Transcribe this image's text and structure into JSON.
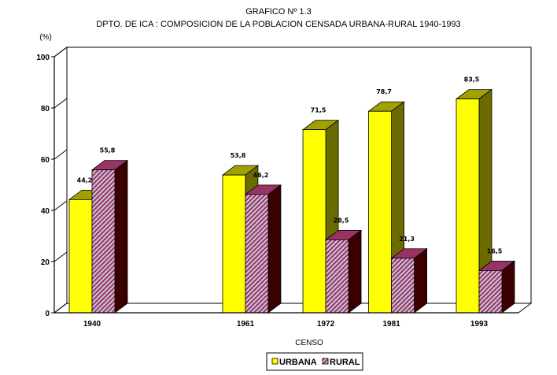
{
  "chart_data": {
    "type": "bar",
    "title": "GRAFICO Nº 1.3",
    "subtitle": "DPTO. DE ICA : COMPOSICION DE LA POBLACION CENSADA URBANA-RURAL 1940-1993",
    "ylabel": "(%)",
    "xlabel": "CENSO",
    "ylim": [
      0,
      100
    ],
    "yticks": [
      0,
      20,
      40,
      60,
      80,
      100
    ],
    "categories": [
      "1940",
      "1961",
      "1972",
      "1981",
      "1993"
    ],
    "x_years": [
      1940,
      1961,
      1972,
      1981,
      1993
    ],
    "series": [
      {
        "name": "URBANA",
        "values": [
          44.2,
          53.8,
          71.5,
          78.7,
          83.5
        ],
        "labels": [
          "44,2",
          "53,8",
          "71,5",
          "78,7",
          "83,5"
        ]
      },
      {
        "name": "RURAL",
        "values": [
          55.8,
          46.2,
          28.5,
          21.3,
          16.5
        ],
        "labels": [
          "55,8",
          "46,2",
          "28,5",
          "21,3",
          "16,5"
        ]
      }
    ],
    "legend_position": "bottom",
    "grid": false,
    "three_d": true,
    "colors": {
      "urbana_front": "#ffff00",
      "urbana_top": "#a0a000",
      "urbana_side": "#6b6b00",
      "rural_front_a": "#993366",
      "rural_front_b": "#c8c8d8",
      "rural_top": "#993366",
      "rural_side": "#3a0000"
    }
  }
}
